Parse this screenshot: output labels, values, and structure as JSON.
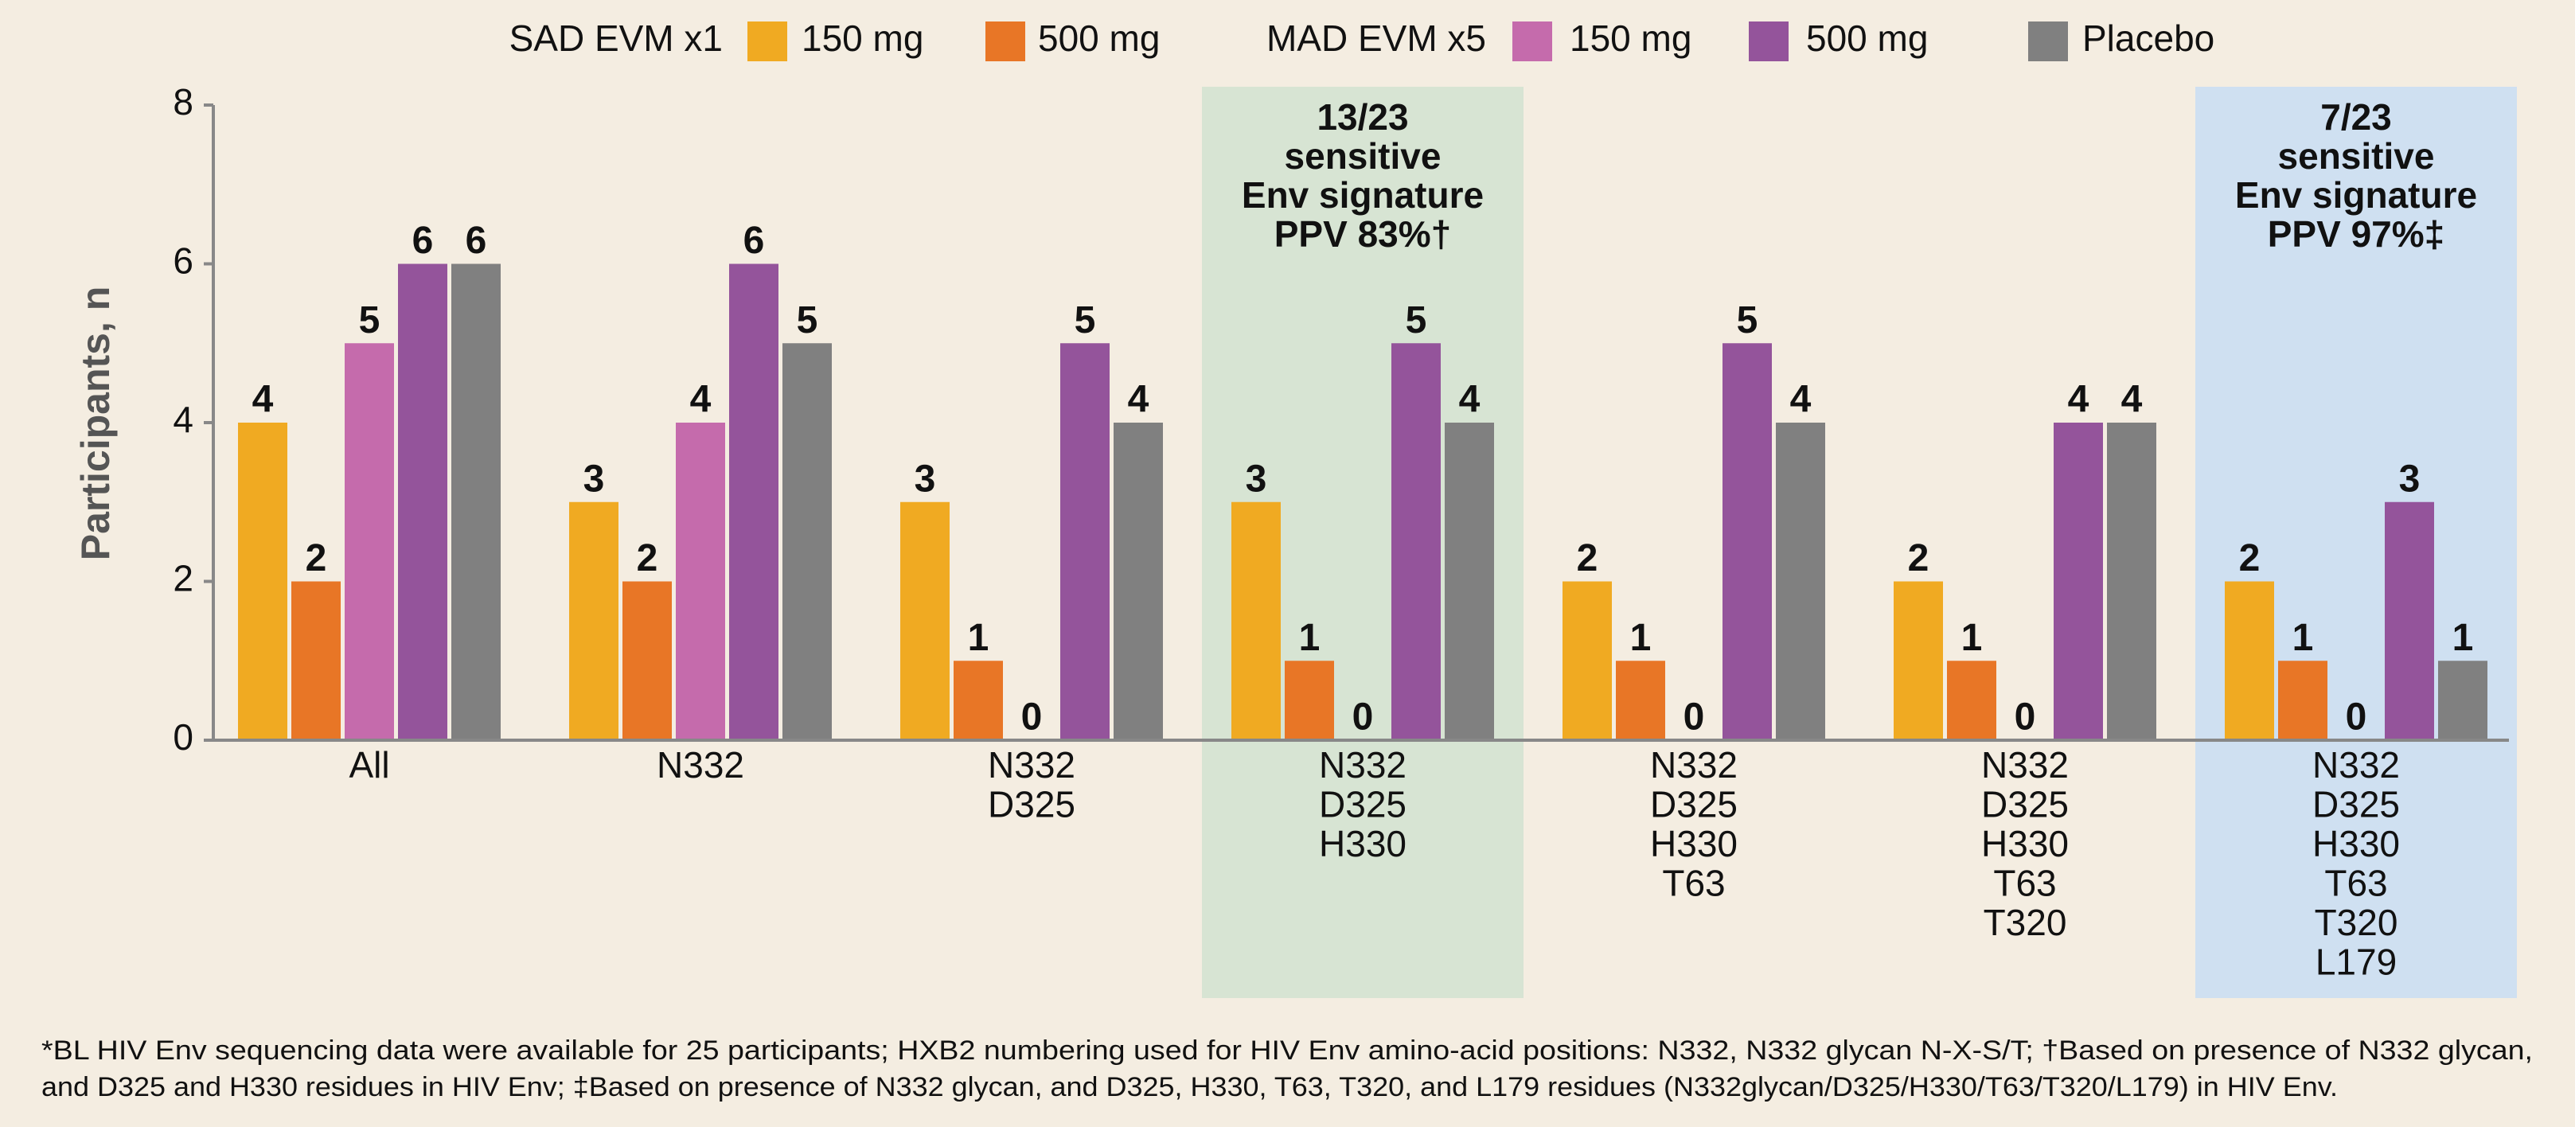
{
  "chart_data": {
    "type": "bar",
    "y_label": "Participants, n",
    "legend_groups": [
      "SAD EVM x1",
      "MAD EVM x5"
    ],
    "categories": [
      [
        "All"
      ],
      [
        "N332"
      ],
      [
        "N332",
        "D325"
      ],
      [
        "N332",
        "D325",
        "H330"
      ],
      [
        "N332",
        "D325",
        "H330",
        "T63"
      ],
      [
        "N332",
        "D325",
        "H330",
        "T63",
        "T320"
      ],
      [
        "N332",
        "D325",
        "H330",
        "T63",
        "T320",
        "L179"
      ]
    ],
    "series": [
      {
        "name": "150 mg",
        "color": "#f0aa22",
        "values": [
          4,
          3,
          3,
          3,
          2,
          2,
          2
        ]
      },
      {
        "name": "500 mg",
        "color": "#e87626",
        "values": [
          2,
          2,
          1,
          1,
          1,
          1,
          1
        ]
      },
      {
        "name": "150 mg",
        "color": "#c56bac",
        "values": [
          5,
          4,
          0,
          0,
          0,
          0,
          0
        ]
      },
      {
        "name": "500 mg",
        "color": "#94549b",
        "values": [
          6,
          6,
          5,
          5,
          5,
          4,
          3
        ]
      },
      {
        "name": "Placebo",
        "color": "#808080",
        "values": [
          6,
          5,
          4,
          4,
          4,
          4,
          1
        ]
      }
    ],
    "ylim": [
      0,
      8
    ],
    "yticks": [
      0,
      2,
      4,
      6,
      8
    ],
    "grid": false,
    "annotations": [
      {
        "lines": [
          "13/23",
          "sensitive",
          "Env signature",
          "PPV 83%†"
        ],
        "color": "#d7e4d3"
      },
      {
        "lines": [
          "7/23",
          "sensitive",
          "Env signature",
          "PPV 97%‡"
        ],
        "color": "#cfe0f1"
      }
    ],
    "footnote": [
      "*BL HIV Env sequencing data were available for 25 participants; HXB2 numbering used for HIV Env amino-acid positions: N332, N332 glycan N-X-S/T; †Based on presence of N332 glycan,",
      "and D325 and H330 residues in HIV Env; ‡Based on presence of N332 glycan, and D325, H330, T63, T320, and L179 residues (N332glycan/D325/H330/T63/T320/L179) in HIV Env."
    ]
  }
}
